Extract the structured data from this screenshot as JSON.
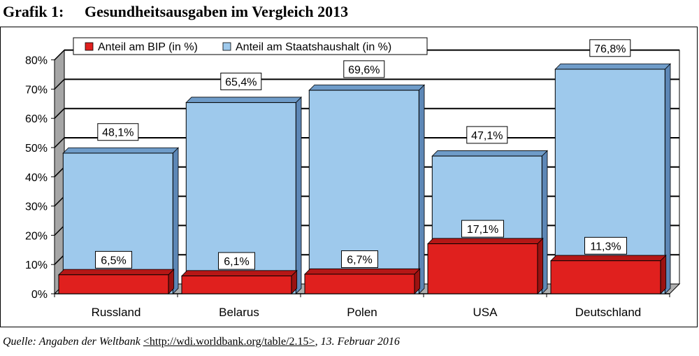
{
  "title": {
    "number": "Grafik 1:",
    "text": "Gesundheitsausgaben im Vergleich 2013"
  },
  "source": {
    "prefix": "Quelle: Angaben der Weltbank",
    "url": "<http://wdi.worldbank.org/table/2.15>",
    "suffix": ", 13. Februar 2016"
  },
  "chart_data": {
    "type": "bar",
    "categories": [
      "Russland",
      "Belarus",
      "Polen",
      "USA",
      "Deutschland"
    ],
    "series": [
      {
        "name": "Anteil am BIP (in %)",
        "color": "#e0201e",
        "values": [
          6.5,
          6.1,
          6.7,
          17.1,
          11.3
        ],
        "labels": [
          "6,5%",
          "6,1%",
          "6,7%",
          "17,1%",
          "11,3%"
        ]
      },
      {
        "name": "Anteil am Staatshaushalt (in %)",
        "color": "#9ec9ec",
        "values": [
          48.1,
          65.4,
          69.6,
          47.1,
          76.8
        ],
        "labels": [
          "48,1%",
          "65,4%",
          "69,6%",
          "47,1%",
          "76,8%"
        ]
      }
    ],
    "y_ticks": [
      "0%",
      "10%",
      "20%",
      "30%",
      "40%",
      "50%",
      "60%",
      "70%",
      "80%"
    ],
    "ylim": [
      0,
      80
    ],
    "grid": true,
    "legend": "top",
    "style": "3d-overlapping-bars"
  }
}
